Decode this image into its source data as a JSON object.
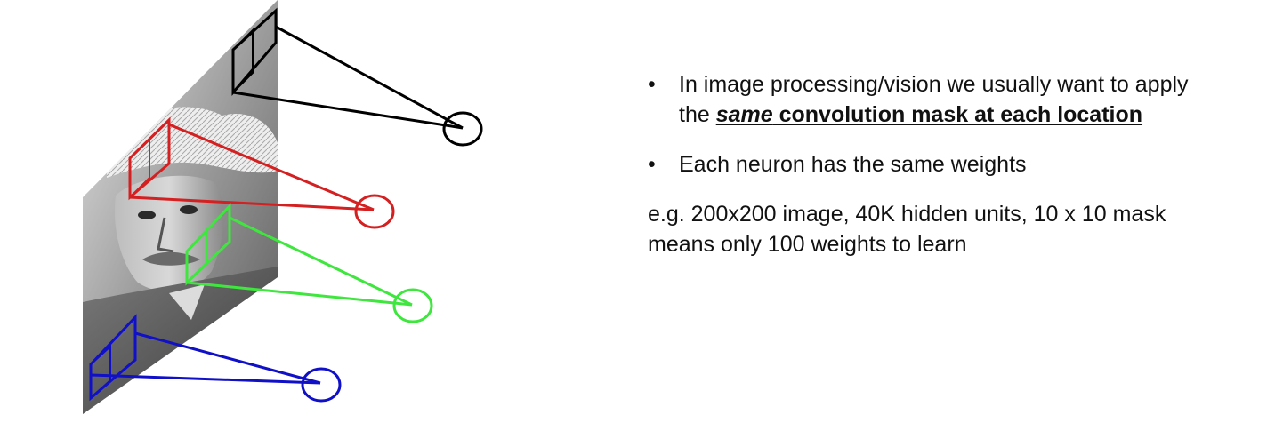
{
  "bullets": {
    "marker": "•",
    "first": {
      "lead": "In image processing/vision we usually want to apply the ",
      "italic": "same",
      "bold_rest": " convolution mask at each location"
    },
    "second": "Each neuron has the same weights"
  },
  "example": "e.g. 200x200 image, 40K hidden units, 10 x 10 mask means only 100 weights to learn",
  "figure": {
    "masks": [
      {
        "id": "mask-1",
        "color": "#000000",
        "icon": "receptive-field-box"
      },
      {
        "id": "mask-2",
        "color": "#d42020",
        "icon": "receptive-field-box"
      },
      {
        "id": "mask-3",
        "color": "#3ee63e",
        "icon": "receptive-field-box"
      },
      {
        "id": "mask-4",
        "color": "#1010c8",
        "icon": "receptive-field-box"
      }
    ],
    "neuron_icon": "neuron-circle",
    "image_plane_icon": "einstein-photo"
  }
}
